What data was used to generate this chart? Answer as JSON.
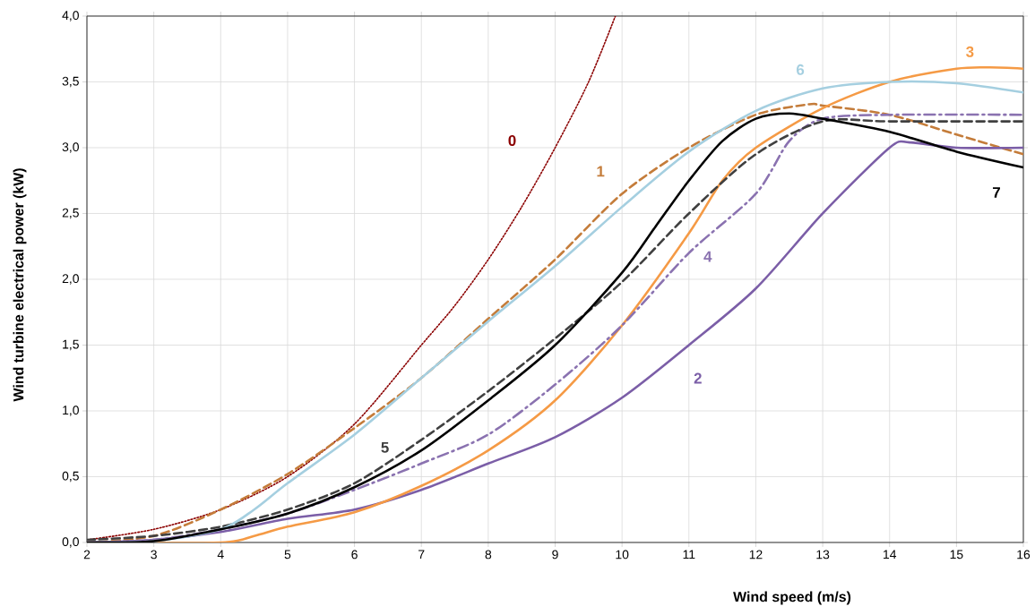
{
  "chart_data": {
    "type": "line",
    "xlabel": "Wind speed (m/s)",
    "ylabel": "Wind turbine electrical  power (kW)",
    "xlim": [
      2,
      16
    ],
    "ylim": [
      0,
      4
    ],
    "xticks": [
      2,
      3,
      4,
      5,
      6,
      7,
      8,
      9,
      10,
      11,
      12,
      13,
      14,
      15,
      16
    ],
    "yticks": [
      {
        "value": 0,
        "label": "0,0"
      },
      {
        "value": 0.5,
        "label": "0,5"
      },
      {
        "value": 1,
        "label": "1,0"
      },
      {
        "value": 1.5,
        "label": "1,5"
      },
      {
        "value": 2,
        "label": "2,0"
      },
      {
        "value": 2.5,
        "label": "2,5"
      },
      {
        "value": 3,
        "label": "3,0"
      },
      {
        "value": 3.5,
        "label": "3,5"
      },
      {
        "value": 4,
        "label": "4,0"
      }
    ],
    "grid": true,
    "series": [
      {
        "name": "0",
        "color": "#8b0000",
        "line_style": "dotted",
        "x": [
          2,
          3,
          4,
          5,
          6,
          7,
          7.5,
          8,
          8.5,
          9,
          9.5,
          9.9
        ],
        "values": [
          0.02,
          0.1,
          0.25,
          0.5,
          0.9,
          1.5,
          1.8,
          2.15,
          2.55,
          3.0,
          3.5,
          4.0
        ]
      },
      {
        "name": "1",
        "color": "#c47c3a",
        "line_style": "dashed",
        "x": [
          2,
          3,
          4,
          5,
          6,
          7,
          8,
          9,
          10,
          11,
          12,
          12.8,
          13,
          14,
          15,
          16
        ],
        "values": [
          0.0,
          0.05,
          0.25,
          0.52,
          0.87,
          1.25,
          1.7,
          2.15,
          2.65,
          3.0,
          3.25,
          3.33,
          3.32,
          3.25,
          3.1,
          2.95
        ]
      },
      {
        "name": "2",
        "color": "#7b5ea7",
        "line_style": "solid",
        "x": [
          2,
          3,
          4,
          5,
          6,
          7,
          8,
          9,
          10,
          11,
          12,
          13,
          14,
          14.3,
          15,
          16
        ],
        "values": [
          0,
          0.02,
          0.08,
          0.18,
          0.25,
          0.4,
          0.6,
          0.8,
          1.1,
          1.5,
          1.93,
          2.5,
          3.0,
          3.04,
          3.0,
          3.0
        ]
      },
      {
        "name": "3",
        "color": "#f59a45",
        "line_style": "solid",
        "x": [
          2,
          4,
          4.5,
          5,
          6,
          7,
          8,
          9,
          10,
          11,
          11.5,
          12,
          13,
          14,
          15,
          15.5,
          16
        ],
        "values": [
          0,
          0,
          0.05,
          0.12,
          0.23,
          0.43,
          0.7,
          1.08,
          1.65,
          2.35,
          2.75,
          3.0,
          3.3,
          3.5,
          3.6,
          3.61,
          3.6
        ]
      },
      {
        "name": "4",
        "color": "#8a72b0",
        "line_style": "dashdot",
        "x": [
          2,
          3,
          4,
          5,
          6,
          7,
          8,
          9,
          10,
          11,
          12,
          12.5,
          13,
          14,
          16
        ],
        "values": [
          0,
          0.02,
          0.1,
          0.22,
          0.4,
          0.6,
          0.82,
          1.2,
          1.65,
          2.2,
          2.65,
          3.05,
          3.22,
          3.25,
          3.25
        ]
      },
      {
        "name": "5",
        "color": "#404040",
        "line_style": "dashed",
        "x": [
          2,
          3,
          4,
          5,
          6,
          7,
          8,
          9,
          10,
          11,
          12,
          13,
          14,
          16
        ],
        "values": [
          0.02,
          0.05,
          0.12,
          0.25,
          0.45,
          0.78,
          1.15,
          1.55,
          1.98,
          2.5,
          2.95,
          3.2,
          3.2,
          3.2
        ]
      },
      {
        "name": "6",
        "color": "#a5cfe0",
        "line_style": "solid",
        "x": [
          2,
          3,
          4,
          4.5,
          5,
          6,
          7,
          8,
          9,
          10,
          11,
          12,
          13,
          14,
          15,
          16
        ],
        "values": [
          0,
          0.01,
          0.1,
          0.25,
          0.45,
          0.82,
          1.25,
          1.68,
          2.1,
          2.55,
          2.97,
          3.28,
          3.45,
          3.5,
          3.49,
          3.42
        ]
      },
      {
        "name": "7",
        "color": "#000000",
        "line_style": "solid",
        "x": [
          2,
          3,
          4,
          5,
          6,
          7,
          8,
          9,
          10,
          10.5,
          11,
          11.5,
          12,
          12.5,
          13,
          14,
          15,
          16
        ],
        "values": [
          0,
          0.01,
          0.1,
          0.22,
          0.42,
          0.7,
          1.08,
          1.5,
          2.05,
          2.4,
          2.75,
          3.05,
          3.22,
          3.26,
          3.22,
          3.12,
          2.97,
          2.85
        ]
      }
    ]
  }
}
